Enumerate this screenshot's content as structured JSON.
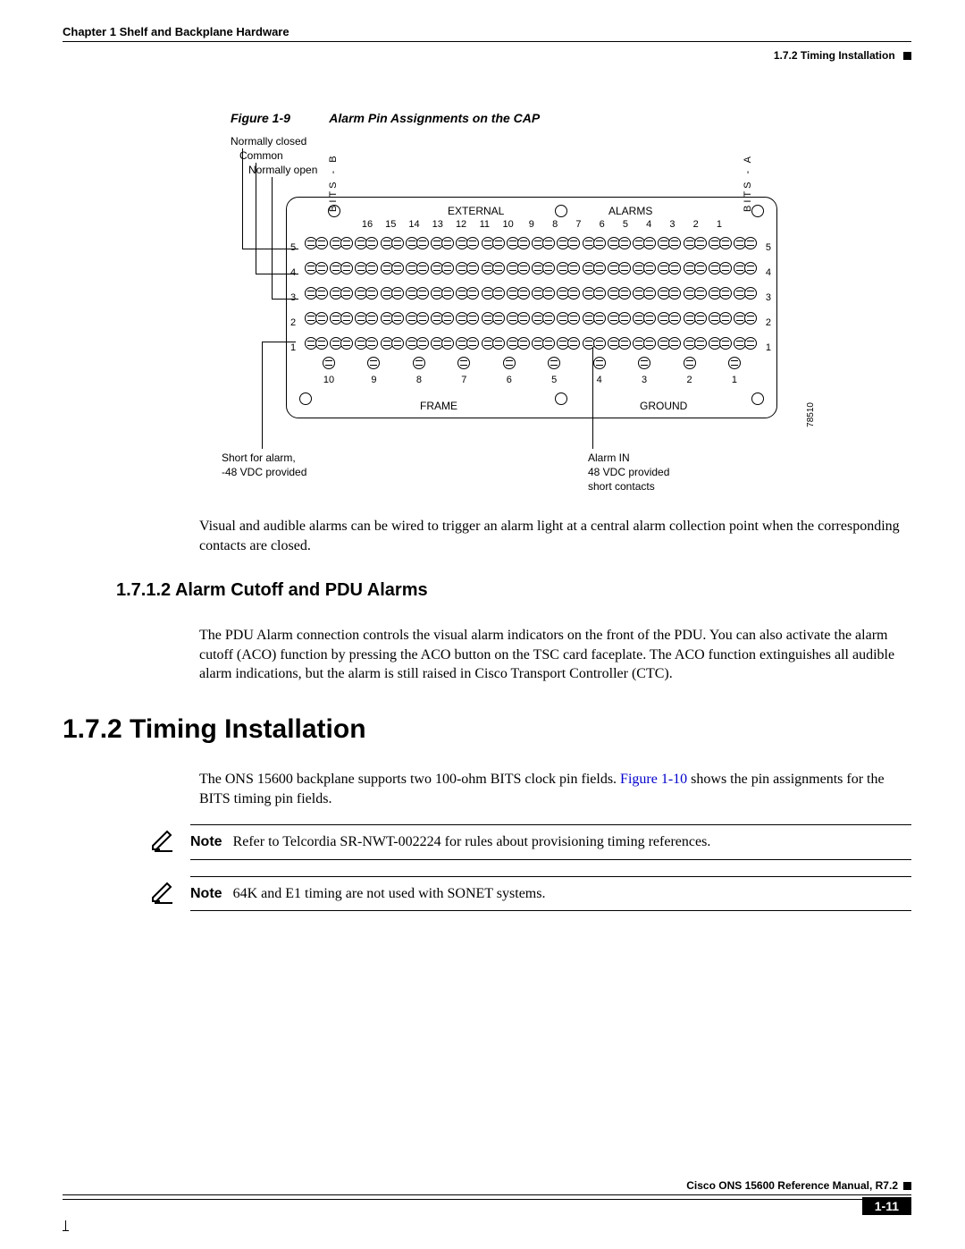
{
  "header": {
    "chapter": "Chapter 1  Shelf and Backplane Hardware",
    "section": "1.7.2  Timing Installation"
  },
  "figure": {
    "num": "Figure 1-9",
    "title": "Alarm Pin Assignments on the CAP",
    "callouts": {
      "nc": "Normally closed",
      "common": "Common",
      "no": "Normally open",
      "short_alarm_1": "Short for alarm,",
      "short_alarm_2": "-48 VDC provided",
      "alarm_in_1": "Alarm IN",
      "alarm_in_2": "48 VDC provided",
      "alarm_in_3": "short contacts"
    },
    "labels": {
      "external": "EXTERNAL",
      "alarms": "ALARMS",
      "bits_b": "BITS - B",
      "bits_a": "BITS - A",
      "frame": "FRAME",
      "ground": "GROUND"
    },
    "col_nums": [
      "16",
      "15",
      "14",
      "13",
      "12",
      "11",
      "10",
      "9",
      "8",
      "7",
      "6",
      "5",
      "4",
      "3",
      "2",
      "1"
    ],
    "row_nums": [
      "1",
      "2",
      "3",
      "4",
      "5"
    ],
    "bottom_nums": [
      "10",
      "9",
      "8",
      "7",
      "6",
      "5",
      "4",
      "3",
      "2",
      "1"
    ],
    "figure_id": "78510"
  },
  "para_after_fig": "Visual and audible alarms can be wired to trigger an alarm light at a central alarm collection point when the corresponding contacts are closed.",
  "section_1_7_1_2": {
    "heading": "1.7.1.2  Alarm Cutoff and PDU Alarms",
    "body": "The PDU Alarm connection controls the visual alarm indicators on the front of the PDU. You can also activate the alarm cutoff (ACO) function by pressing the ACO button on the TSC card faceplate. The ACO function extinguishes all audible alarm indications, but the alarm is still raised in Cisco Transport Controller (CTC)."
  },
  "section_1_7_2": {
    "heading": "1.7.2  Timing Installation",
    "body_pre": "The ONS 15600 backplane supports two 100-ohm BITS clock pin fields. ",
    "body_link": "Figure 1-10",
    "body_post": " shows the pin assignments for the BITS timing pin fields.",
    "note1": "Refer to Telcordia SR-NWT-002224 for rules about provisioning timing references.",
    "note2": "64K and E1 timing are not used with SONET systems.",
    "note_label": "Note"
  },
  "footer": {
    "manual": "Cisco ONS 15600 Reference Manual, R7.2",
    "page": "1-11"
  }
}
